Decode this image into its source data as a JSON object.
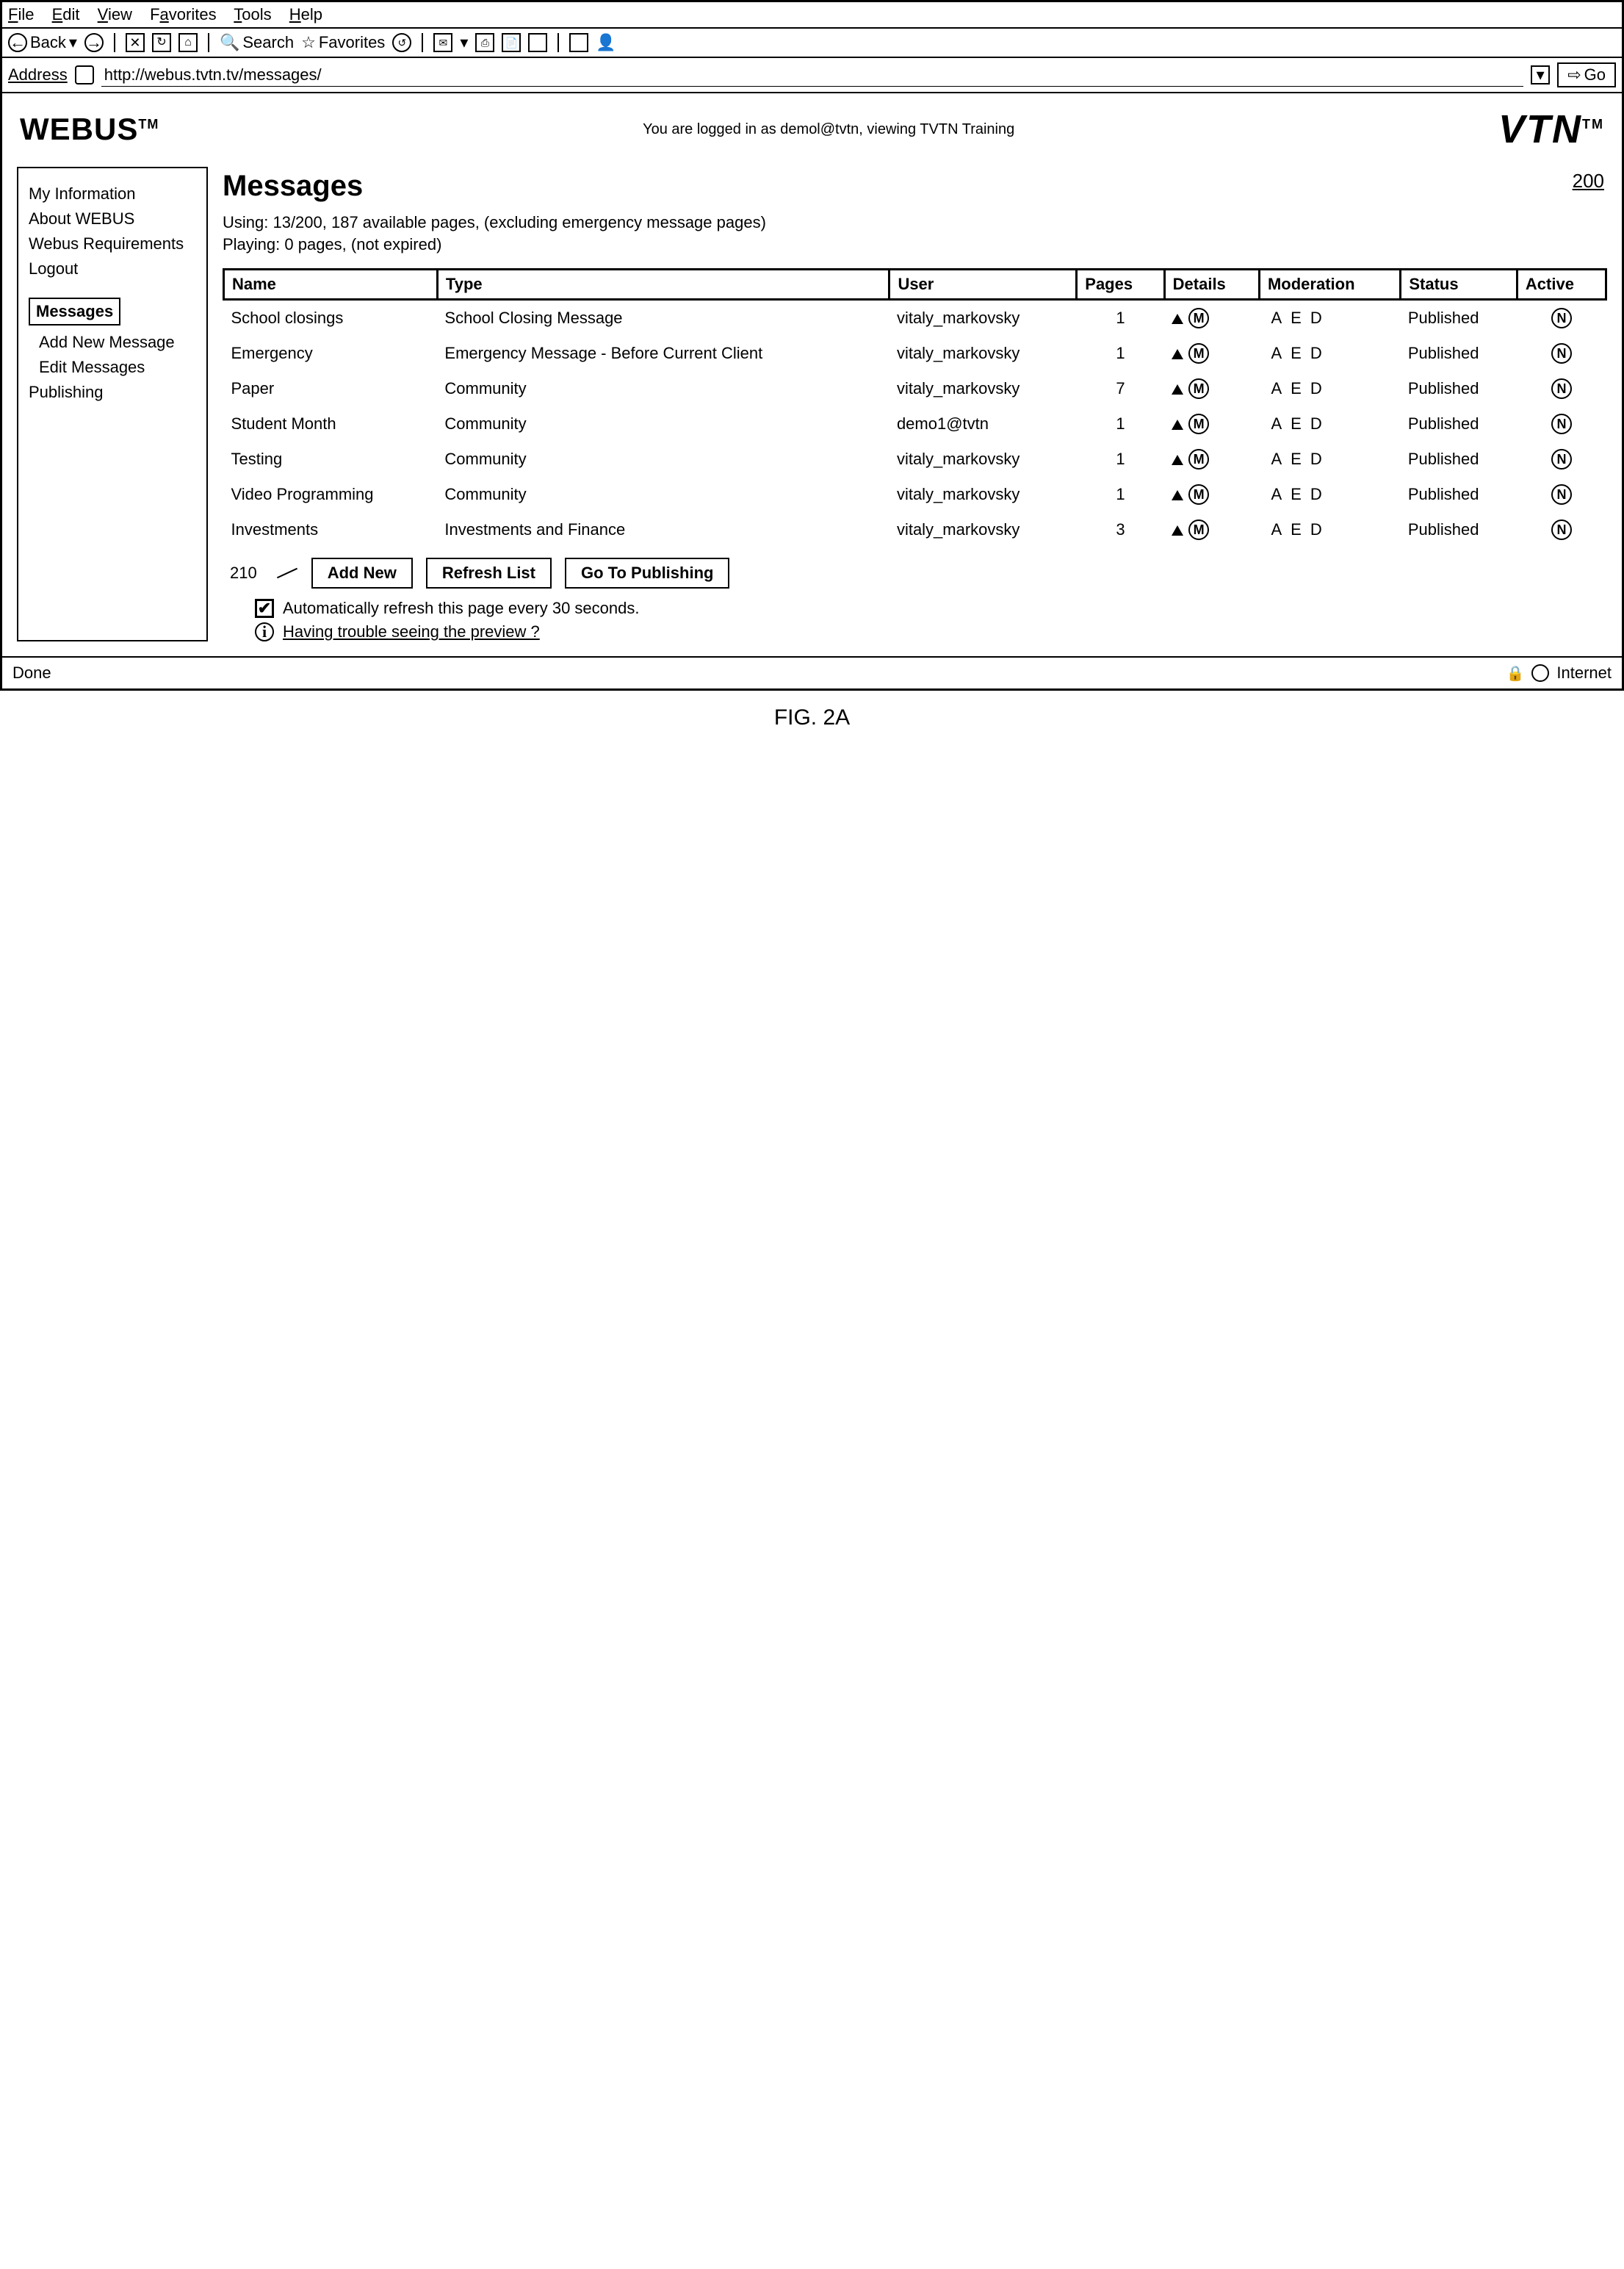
{
  "menubar": {
    "file": "File",
    "edit": "Edit",
    "view": "View",
    "favorites": "Favorites",
    "tools": "Tools",
    "help": "Help"
  },
  "toolbar": {
    "back": "Back",
    "search": "Search",
    "favorites": "Favorites"
  },
  "address": {
    "label": "Address",
    "url": "http://webus.tvtn.tv/messages/",
    "go": "Go"
  },
  "brand_left": "WEBUS",
  "brand_left_tm": "TM",
  "login_line": "You are logged in as demol@tvtn, viewing TVTN Training",
  "brand_right": "VTN",
  "brand_right_tm": "TM",
  "page_num": "200",
  "sidebar": {
    "grp1": [
      "My Information",
      "About WEBUS",
      "Webus Requirements",
      "Logout"
    ],
    "messages_box": "Messages",
    "grp2": [
      "Add New Message",
      "Edit Messages",
      "Publishing"
    ]
  },
  "heading": "Messages",
  "using_line": "Using: 13/200, 187 available pages, (excluding emergency message pages)",
  "playing_line": "Playing: 0 pages, (not expired)",
  "columns": [
    "Name",
    "Type",
    "User",
    "Pages",
    "Details",
    "Moderation",
    "Status",
    "Active"
  ],
  "rows": [
    {
      "name": "School closings",
      "type": "School Closing Message",
      "user": "vitaly_markovsky",
      "pages": "1",
      "status": "Published"
    },
    {
      "name": "Emergency",
      "type": "Emergency Message - Before Current Client",
      "user": "vitaly_markovsky",
      "pages": "1",
      "status": "Published"
    },
    {
      "name": "Paper",
      "type": "Community",
      "user": "vitaly_markovsky",
      "pages": "7",
      "status": "Published"
    },
    {
      "name": "Student Month",
      "type": "Community",
      "user": "demo1@tvtn",
      "pages": "1",
      "status": "Published"
    },
    {
      "name": "Testing",
      "type": "Community",
      "user": "vitaly_markovsky",
      "pages": "1",
      "status": "Published"
    },
    {
      "name": "Video Programming",
      "type": "Community",
      "user": "vitaly_markovsky",
      "pages": "1",
      "status": "Published"
    },
    {
      "name": "Investments",
      "type": "Investments and Finance",
      "user": "vitaly_markovsky",
      "pages": "3",
      "status": "Published"
    }
  ],
  "mod_labels": {
    "a": "A",
    "e": "E",
    "d": "D"
  },
  "detail_m": "M",
  "active_n": "N",
  "callout": "210",
  "buttons": {
    "add": "Add New",
    "refresh": "Refresh List",
    "publish": "Go To Publishing"
  },
  "auto_refresh": "Automatically refresh this page every 30 seconds.",
  "help_link": "Having trouble seeing the preview ?",
  "status": {
    "left": "Done",
    "right": "Internet"
  },
  "fig": "FIG. 2A"
}
